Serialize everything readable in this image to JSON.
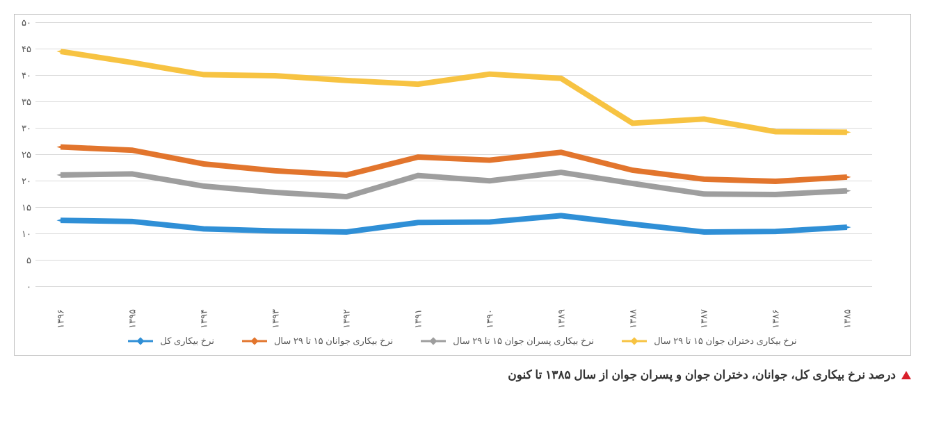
{
  "chart": {
    "type": "line",
    "background_color": "#ffffff",
    "border_color": "#bfbfbf",
    "grid_color": "#d9d9d9",
    "tick_label_color": "#595959",
    "tick_fontsize": 13,
    "ylim": [
      0,
      50
    ],
    "ytick_step": 5,
    "yticks_labels": [
      "۰",
      "۵",
      "۱۰",
      "۱۵",
      "۲۰",
      "۲۵",
      "۳۰",
      "۳۵",
      "۴۰",
      "۴۵",
      "۵۰"
    ],
    "categories": [
      "۱۳۸۵",
      "۱۳۸۶",
      "۱۳۸۷",
      "۱۳۸۸",
      "۱۳۸۹",
      "۱۳۹۰",
      "۱۳۹۱",
      "۱۳۹۲",
      "۱۳۹۳",
      "۱۳۹۴",
      "۱۳۹۵",
      "۱۳۹۶"
    ],
    "line_width": 3,
    "marker": "diamond",
    "marker_size": 8,
    "series": [
      {
        "key": "total",
        "label": "نرخ بیکاری کل",
        "color": "#2f8fd6",
        "values": [
          11.3,
          10.5,
          10.4,
          11.9,
          13.5,
          12.3,
          12.2,
          10.4,
          10.6,
          11.0,
          12.4,
          12.6
        ]
      },
      {
        "key": "youth",
        "label": "نرخ بیکاری جوانان ۱۵ تا ۲۹ سال",
        "color": "#e2752d",
        "values": [
          20.8,
          20.0,
          20.4,
          22.1,
          25.5,
          24.0,
          24.6,
          21.2,
          22.0,
          23.3,
          25.9,
          26.5
        ]
      },
      {
        "key": "male",
        "label": "نرخ بیکاری پسران جوان ۱۵ تا ۲۹ سال",
        "color": "#9e9e9e",
        "values": [
          18.2,
          17.5,
          17.6,
          19.6,
          21.7,
          20.1,
          21.1,
          17.1,
          17.9,
          19.1,
          21.4,
          21.2
        ]
      },
      {
        "key": "female",
        "label": "نرخ بیکاری دختران جوان ۱۵ تا ۲۹ سال",
        "color": "#f7c342",
        "values": [
          29.3,
          29.4,
          31.8,
          31.0,
          39.5,
          40.3,
          38.4,
          39.1,
          40.0,
          40.2,
          42.5,
          44.6
        ]
      }
    ]
  },
  "caption": "درصد نرخ بیکاری کل، جوانان، دختران جوان و پسران جوان از سال ۱۳۸۵ تا کنون",
  "caption_marker_color": "#d91f2a",
  "caption_fontsize": 17,
  "caption_color": "#333333"
}
